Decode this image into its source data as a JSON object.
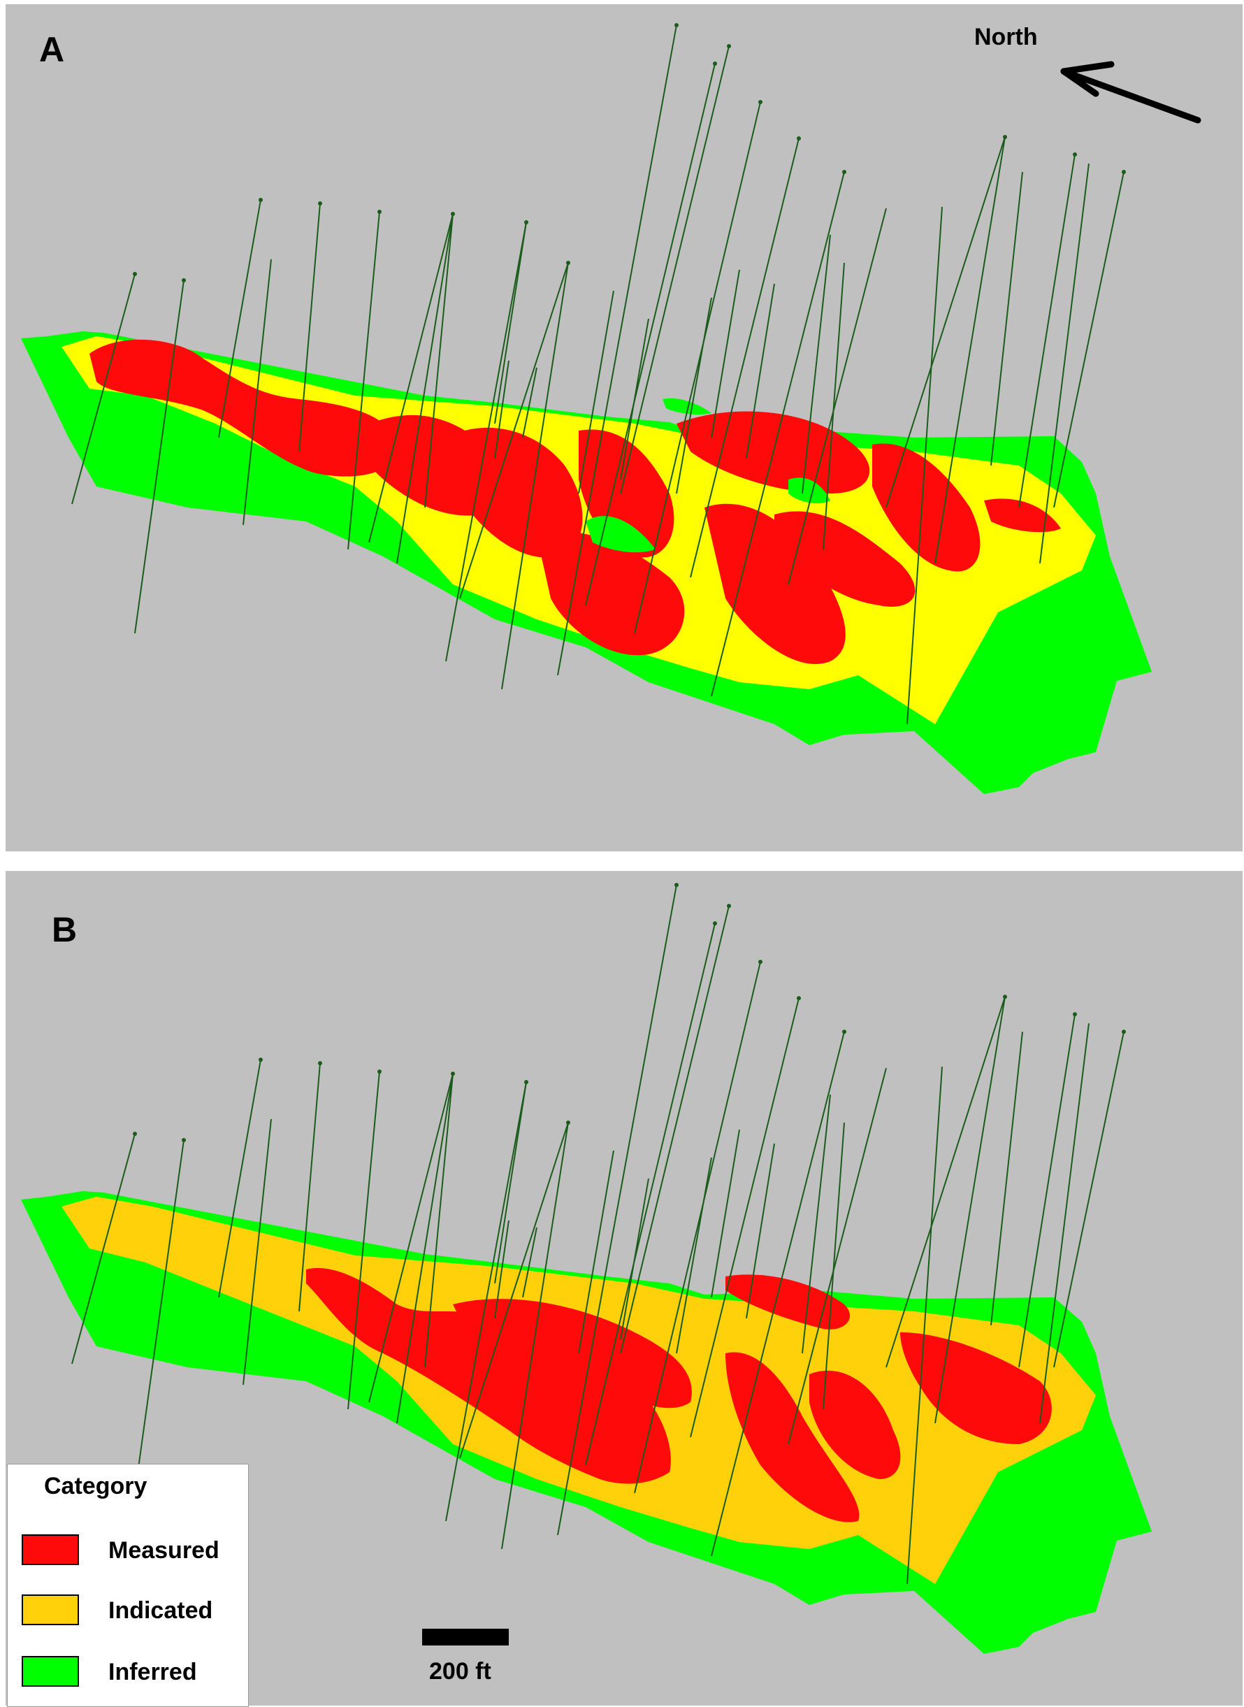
{
  "panels": {
    "a": {
      "label": "A"
    },
    "b": {
      "label": "B"
    }
  },
  "north": {
    "label": "North"
  },
  "legend": {
    "title": "Category",
    "items": [
      {
        "label": "Measured",
        "color": "#ff0a0a"
      },
      {
        "label": "Indicated",
        "color": "#ffd10a"
      },
      {
        "label": "Inferred",
        "color": "#00ff00"
      }
    ]
  },
  "scale": {
    "label": "200 ft"
  },
  "colors": {
    "background": "#c0c0c0",
    "drillhole": "#1a5c1a",
    "measured": "#ff0a0a",
    "indicated_a": "#ffff00",
    "indicated_b": "#ffd10a",
    "inferred": "#00ff00"
  }
}
